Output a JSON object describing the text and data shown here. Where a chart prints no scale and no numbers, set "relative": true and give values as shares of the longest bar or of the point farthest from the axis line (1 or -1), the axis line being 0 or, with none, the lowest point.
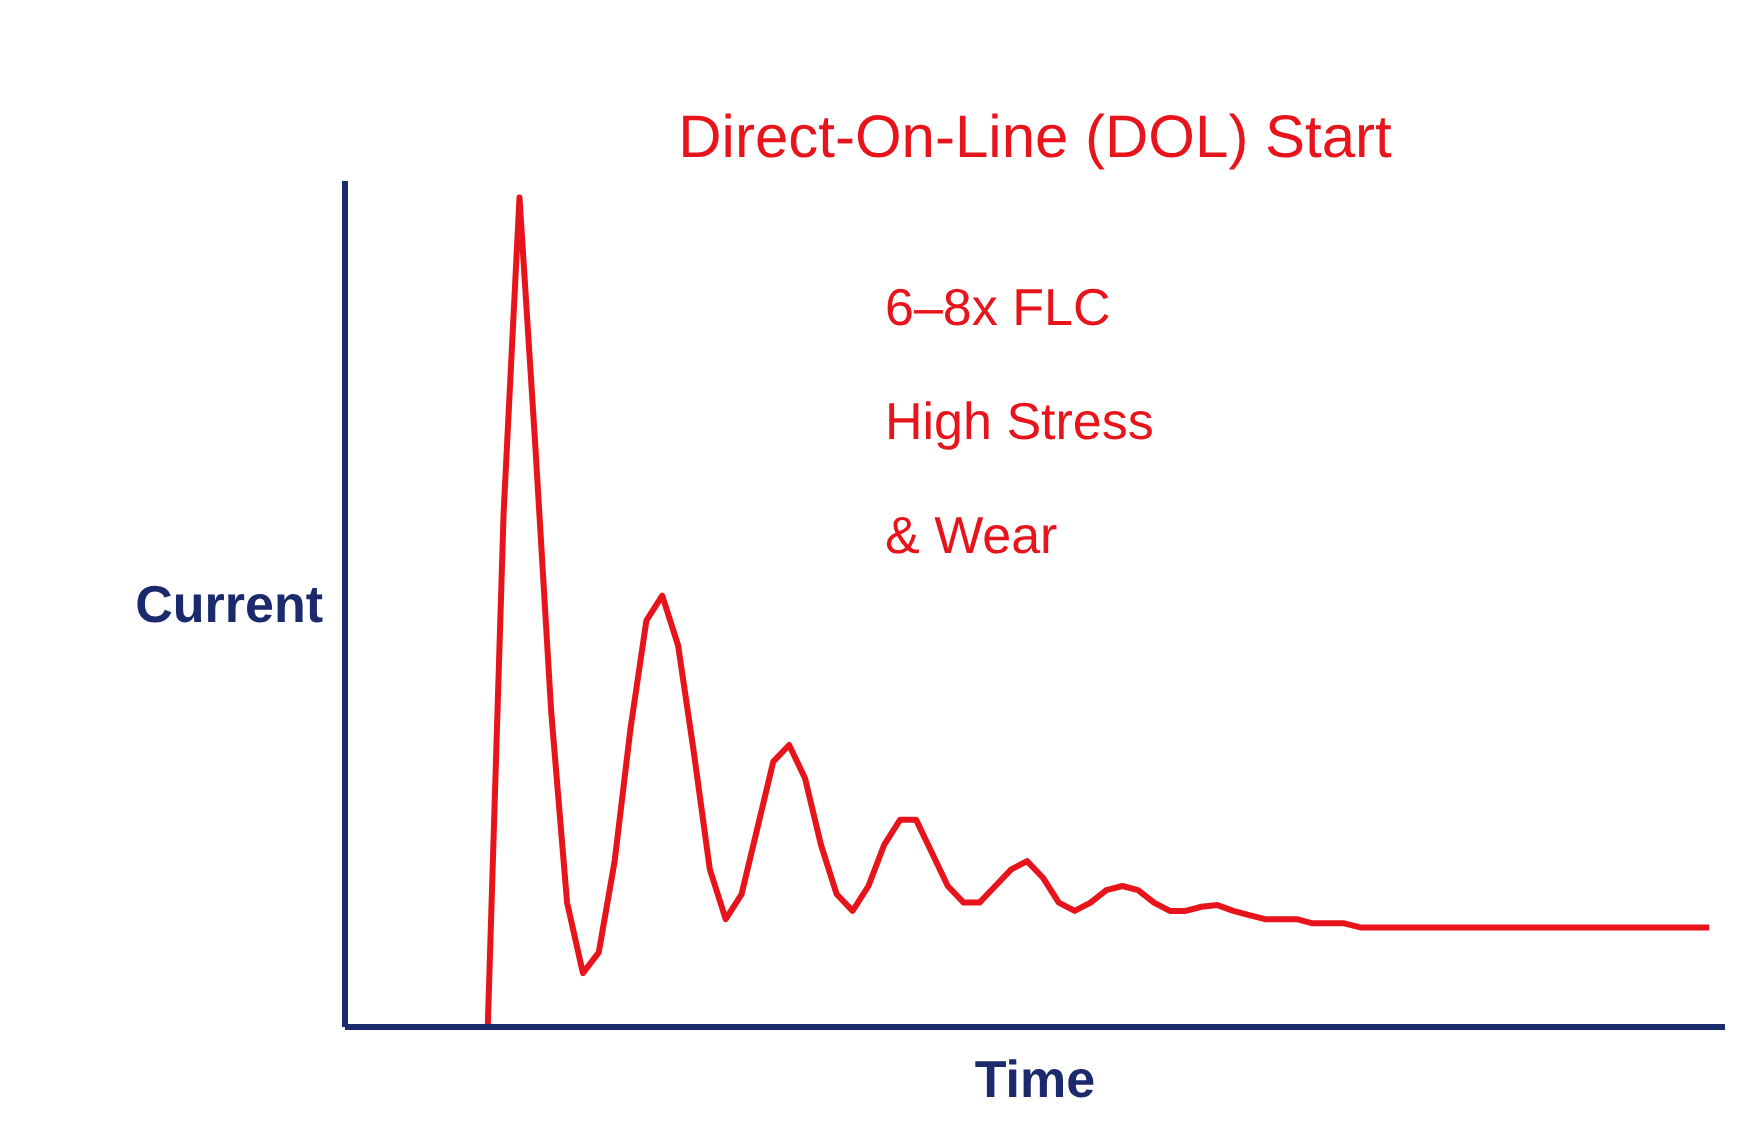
{
  "chart_data": {
    "type": "line",
    "title": "Direct-On-Line (DOL) Start",
    "xlabel": "Time",
    "ylabel": "Current",
    "relative": true,
    "grid": false,
    "marker": "none",
    "line_style": "solid",
    "annotations": [
      "6–8x FLC",
      "High Stress",
      "& Wear"
    ],
    "categories": [
      null,
      null,
      null,
      null,
      null,
      null,
      null,
      null,
      null,
      null,
      null,
      null,
      null,
      null,
      null,
      null,
      null,
      null,
      null,
      null,
      null,
      null,
      null,
      null,
      null,
      null,
      null,
      null,
      null,
      null,
      null,
      null,
      null,
      null,
      null,
      null,
      null,
      null,
      null,
      null,
      null,
      null,
      null,
      null,
      null,
      null,
      null,
      null,
      null,
      null,
      null,
      null,
      null,
      null,
      null,
      null,
      null,
      null,
      null,
      null,
      null,
      null,
      null,
      null,
      null,
      null,
      null,
      null,
      null,
      null,
      null,
      null,
      null,
      null,
      null,
      null,
      null,
      null,
      null,
      null,
      null,
      null,
      null,
      null,
      null,
      null,
      null
    ],
    "series": [
      {
        "color": "#e8141c",
        "values": [
          null,
          null,
          null,
          null,
          null,
          null,
          null,
          null,
          null,
          0,
          0.62,
          1.0,
          0.7,
          0.38,
          0.15,
          0.065,
          0.09,
          0.2,
          0.36,
          0.49,
          0.52,
          0.46,
          0.33,
          0.19,
          0.13,
          0.16,
          0.24,
          0.32,
          0.34,
          0.3,
          0.22,
          0.16,
          0.14,
          0.17,
          0.22,
          0.25,
          0.25,
          0.21,
          0.17,
          0.15,
          0.15,
          0.17,
          0.19,
          0.2,
          0.18,
          0.15,
          0.14,
          0.15,
          0.165,
          0.17,
          0.165,
          0.15,
          0.14,
          0.14,
          0.145,
          0.147,
          0.14,
          0.135,
          0.13,
          0.13,
          0.13,
          0.125,
          0.125,
          0.125,
          0.12,
          0.12,
          0.12,
          0.12,
          0.12,
          0.12,
          0.12,
          0.12,
          0.12,
          0.12,
          0.12,
          0.12,
          0.12,
          0.12,
          0.12,
          0.12,
          0.12,
          0.12,
          0.12,
          0.12,
          0.12,
          0.12,
          0.12
        ]
      }
    ]
  }
}
